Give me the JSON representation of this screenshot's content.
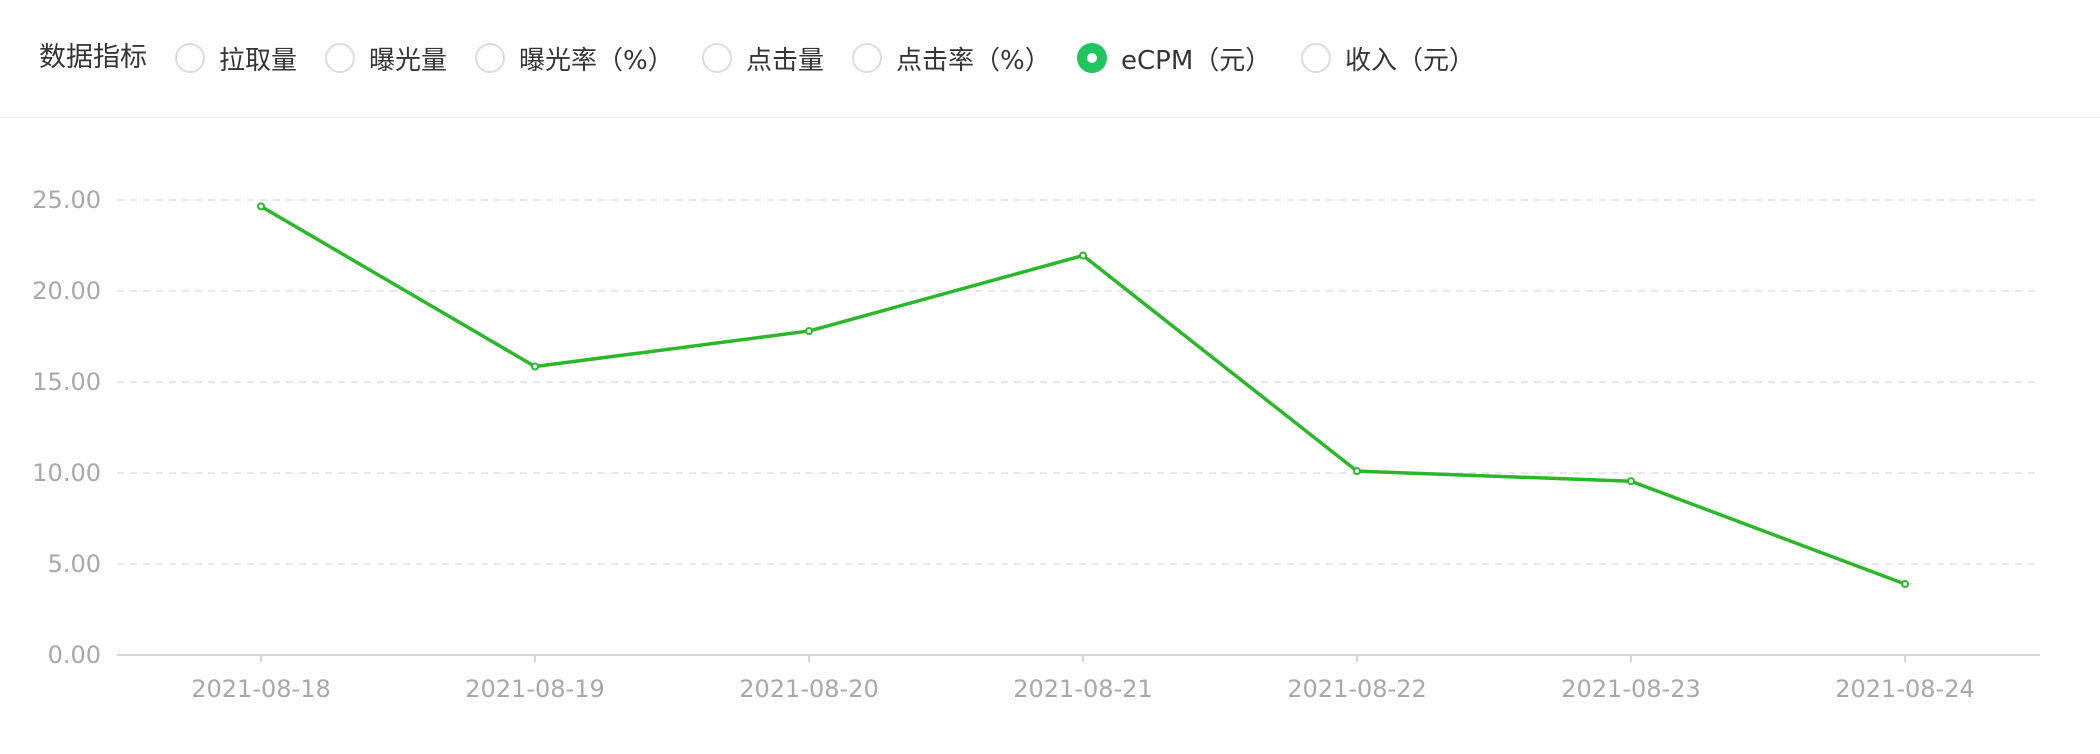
{
  "filter": {
    "label": "数据指标",
    "options": [
      {
        "label": "拉取量",
        "checked": false
      },
      {
        "label": "曝光量",
        "checked": false
      },
      {
        "label": "曝光率（%）",
        "checked": false
      },
      {
        "label": "点击量",
        "checked": false
      },
      {
        "label": "点击率（%）",
        "checked": false
      },
      {
        "label": "eCPM（元）",
        "checked": true
      },
      {
        "label": "收入（元）",
        "checked": false
      }
    ]
  },
  "colors": {
    "accent": "#1fc55e",
    "line": "#2ab82a",
    "grid": "#e0e0e0",
    "tick": "#a8a8a8"
  },
  "chart_data": {
    "type": "line",
    "x": [
      "2021-08-18",
      "2021-08-19",
      "2021-08-20",
      "2021-08-21",
      "2021-08-22",
      "2021-08-23",
      "2021-08-24"
    ],
    "series": [
      {
        "values": [
          24.65,
          15.85,
          17.8,
          21.95,
          10.1,
          9.55,
          3.9
        ]
      }
    ],
    "y_ticks": [
      "0.00",
      "5.00",
      "10.00",
      "15.00",
      "20.00",
      "25.00"
    ],
    "ylim": [
      0,
      25
    ],
    "grid": true
  }
}
